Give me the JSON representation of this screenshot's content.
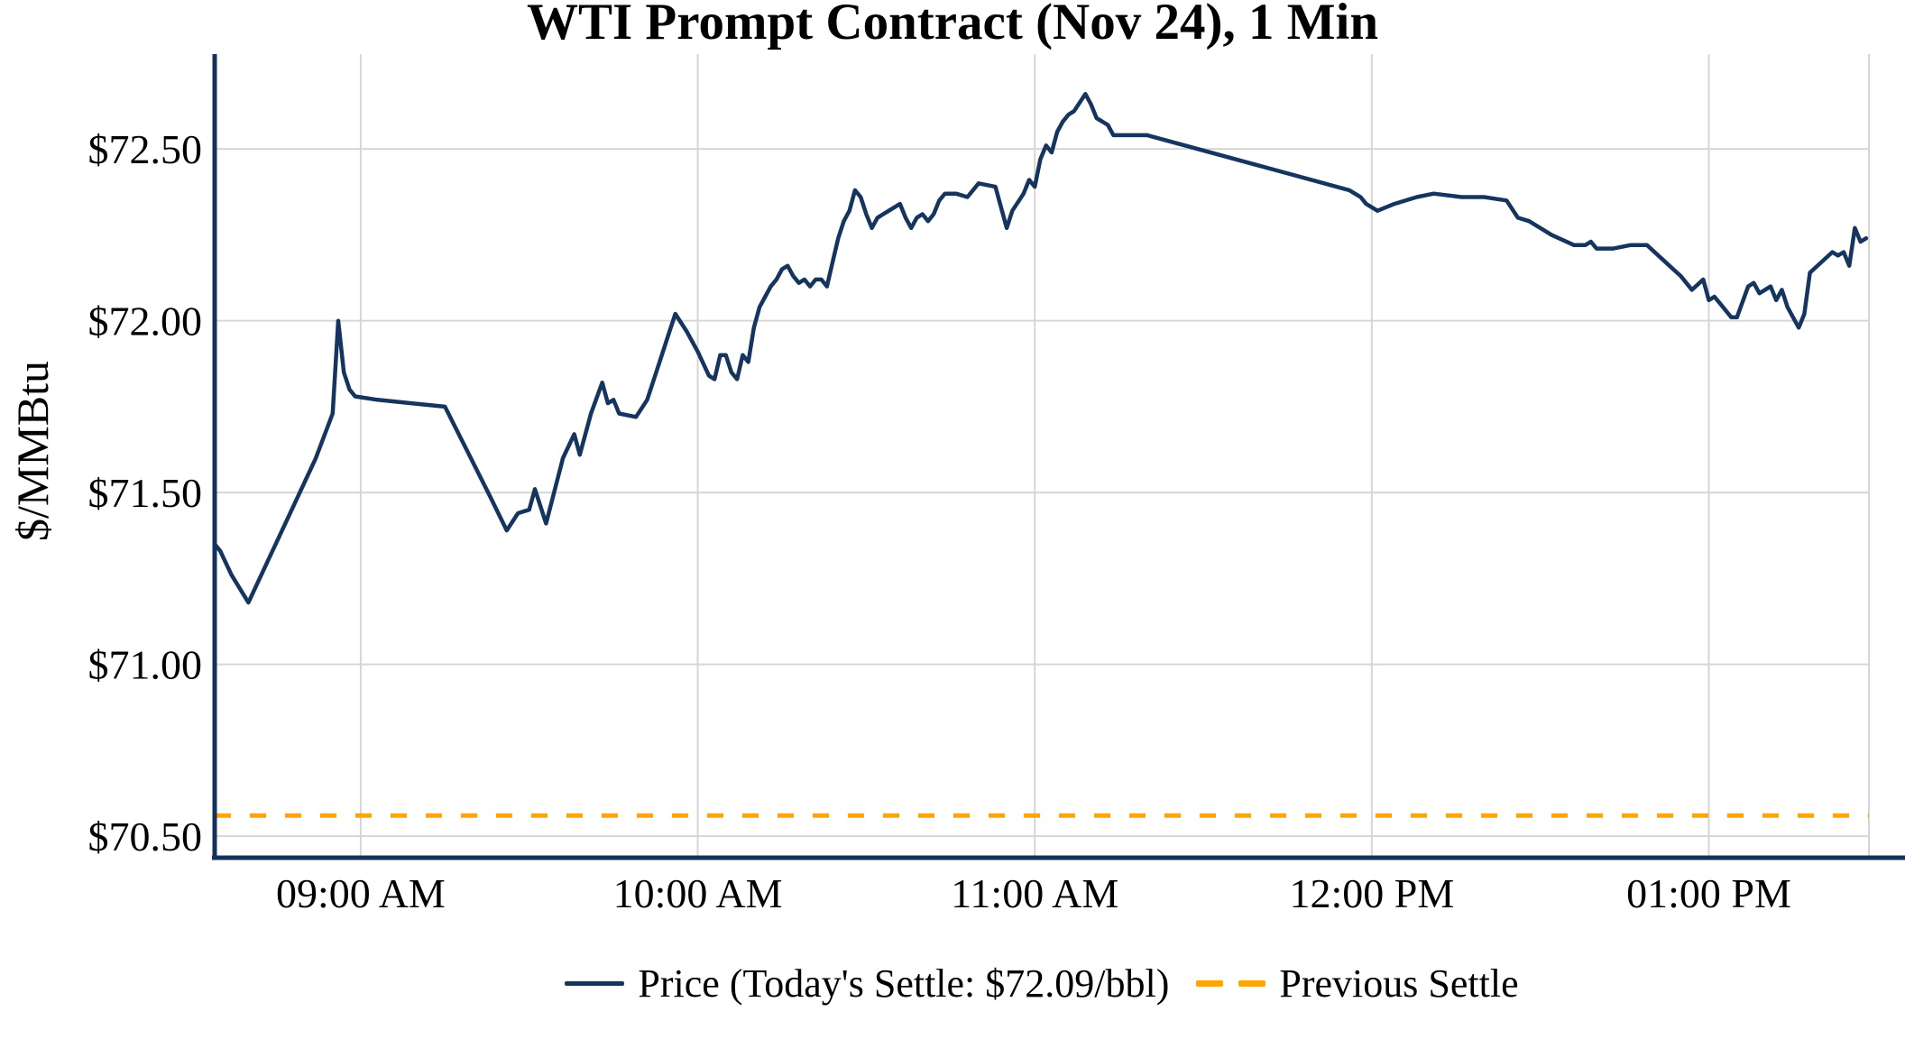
{
  "chart_data": {
    "type": "line",
    "title": "WTI Prompt Contract (Nov 24), 1 Min",
    "ylabel": "$/MMBtu",
    "xlabel": "",
    "grid": true,
    "legend_position": "bottom-center",
    "xlim_minutes": [
      514,
      808.5
    ],
    "ylim": [
      70.44,
      72.776
    ],
    "x_ticks": [
      {
        "label": "09:00 AM",
        "minutes": 540
      },
      {
        "label": "10:00 AM",
        "minutes": 600
      },
      {
        "label": "11:00 AM",
        "minutes": 660
      },
      {
        "label": "12:00 PM",
        "minutes": 720
      },
      {
        "label": "01:00 PM",
        "minutes": 780
      }
    ],
    "y_ticks": [
      {
        "label": "$72.50",
        "value": 72.5
      },
      {
        "label": "$72.00",
        "value": 72.0
      },
      {
        "label": "$71.50",
        "value": 71.5
      },
      {
        "label": "$71.00",
        "value": 71.0
      },
      {
        "label": "$70.50",
        "value": 70.5
      }
    ],
    "today_settle": 72.09,
    "previous_settle": 70.56,
    "series": [
      {
        "name": "Price (Today's Settle: $72.09/bbl)",
        "color": "#16355e",
        "style": "solid",
        "points": [
          [
            514,
            71.35
          ],
          [
            515,
            71.33
          ],
          [
            517,
            71.26
          ],
          [
            520,
            71.18
          ],
          [
            524,
            71.32
          ],
          [
            528,
            71.46
          ],
          [
            532,
            71.6
          ],
          [
            535,
            71.73
          ],
          [
            536,
            72.0
          ],
          [
            537,
            71.85
          ],
          [
            538,
            71.8
          ],
          [
            539,
            71.78
          ],
          [
            543,
            71.77
          ],
          [
            549,
            71.76
          ],
          [
            555,
            71.75
          ],
          [
            559,
            71.62
          ],
          [
            563,
            71.49
          ],
          [
            566,
            71.39
          ],
          [
            568,
            71.44
          ],
          [
            570,
            71.45
          ],
          [
            571,
            71.51
          ],
          [
            573,
            71.41
          ],
          [
            576,
            71.6
          ],
          [
            578,
            71.67
          ],
          [
            579,
            71.61
          ],
          [
            581,
            71.73
          ],
          [
            583,
            71.82
          ],
          [
            584,
            71.76
          ],
          [
            585,
            71.77
          ],
          [
            586,
            71.73
          ],
          [
            589,
            71.72
          ],
          [
            591,
            71.77
          ],
          [
            593,
            71.87
          ],
          [
            595,
            71.97
          ],
          [
            596,
            72.02
          ],
          [
            598,
            71.97
          ],
          [
            600,
            71.91
          ],
          [
            602,
            71.84
          ],
          [
            603,
            71.83
          ],
          [
            604,
            71.9
          ],
          [
            605,
            71.9
          ],
          [
            606,
            71.85
          ],
          [
            607,
            71.83
          ],
          [
            608,
            71.9
          ],
          [
            609,
            71.88
          ],
          [
            610,
            71.98
          ],
          [
            611,
            72.04
          ],
          [
            612,
            72.07
          ],
          [
            613,
            72.1
          ],
          [
            614,
            72.12
          ],
          [
            615,
            72.15
          ],
          [
            616,
            72.16
          ],
          [
            617,
            72.13
          ],
          [
            618,
            72.11
          ],
          [
            619,
            72.12
          ],
          [
            620,
            72.1
          ],
          [
            621,
            72.12
          ],
          [
            622,
            72.12
          ],
          [
            623,
            72.1
          ],
          [
            624,
            72.17
          ],
          [
            625,
            72.24
          ],
          [
            626,
            72.29
          ],
          [
            627,
            72.32
          ],
          [
            628,
            72.38
          ],
          [
            629,
            72.36
          ],
          [
            630,
            72.31
          ],
          [
            631,
            72.27
          ],
          [
            632,
            72.3
          ],
          [
            633,
            72.31
          ],
          [
            634,
            72.32
          ],
          [
            636,
            72.34
          ],
          [
            637,
            72.3
          ],
          [
            638,
            72.27
          ],
          [
            639,
            72.3
          ],
          [
            640,
            72.31
          ],
          [
            641,
            72.29
          ],
          [
            642,
            72.31
          ],
          [
            643,
            72.35
          ],
          [
            644,
            72.37
          ],
          [
            646,
            72.37
          ],
          [
            648,
            72.36
          ],
          [
            650,
            72.4
          ],
          [
            653,
            72.39
          ],
          [
            655,
            72.27
          ],
          [
            656,
            72.32
          ],
          [
            658,
            72.37
          ],
          [
            659,
            72.41
          ],
          [
            660,
            72.39
          ],
          [
            661,
            72.47
          ],
          [
            662,
            72.51
          ],
          [
            663,
            72.49
          ],
          [
            664,
            72.55
          ],
          [
            665,
            72.58
          ],
          [
            666,
            72.6
          ],
          [
            667,
            72.61
          ],
          [
            669,
            72.66
          ],
          [
            670,
            72.63
          ],
          [
            671,
            72.59
          ],
          [
            672,
            72.58
          ],
          [
            673,
            72.57
          ],
          [
            674,
            72.54
          ],
          [
            680,
            72.54
          ],
          [
            716,
            72.38
          ],
          [
            718,
            72.36
          ],
          [
            719,
            72.34
          ],
          [
            721,
            72.32
          ],
          [
            724,
            72.34
          ],
          [
            728,
            72.36
          ],
          [
            731,
            72.37
          ],
          [
            736,
            72.36
          ],
          [
            740,
            72.36
          ],
          [
            744,
            72.35
          ],
          [
            746,
            72.3
          ],
          [
            748,
            72.29
          ],
          [
            752,
            72.25
          ],
          [
            756,
            72.22
          ],
          [
            758,
            72.22
          ],
          [
            759,
            72.23
          ],
          [
            760,
            72.21
          ],
          [
            763,
            72.21
          ],
          [
            766,
            72.22
          ],
          [
            769,
            72.22
          ],
          [
            771,
            72.19
          ],
          [
            773,
            72.16
          ],
          [
            775,
            72.13
          ],
          [
            777,
            72.09
          ],
          [
            779,
            72.12
          ],
          [
            780,
            72.06
          ],
          [
            781,
            72.07
          ],
          [
            782,
            72.05
          ],
          [
            784,
            72.01
          ],
          [
            785,
            72.01
          ],
          [
            787,
            72.1
          ],
          [
            788,
            72.11
          ],
          [
            789,
            72.08
          ],
          [
            791,
            72.1
          ],
          [
            792,
            72.06
          ],
          [
            793,
            72.09
          ],
          [
            794,
            72.04
          ],
          [
            795,
            72.01
          ],
          [
            796,
            71.98
          ],
          [
            797,
            72.02
          ],
          [
            798,
            72.14
          ],
          [
            800,
            72.17
          ],
          [
            802,
            72.2
          ],
          [
            803,
            72.19
          ],
          [
            804,
            72.2
          ],
          [
            805,
            72.16
          ],
          [
            806,
            72.27
          ],
          [
            807,
            72.23
          ],
          [
            808,
            72.24
          ]
        ]
      },
      {
        "name": "Previous Settle",
        "color": "#ffa500",
        "style": "dashed",
        "value": 70.56
      }
    ]
  },
  "colors": {
    "line": "#16355e",
    "spine": "#14315c",
    "previous_settle": "#ffa500",
    "grid": "#d6d6d6",
    "background": "#ffffff",
    "text": "#000000"
  }
}
